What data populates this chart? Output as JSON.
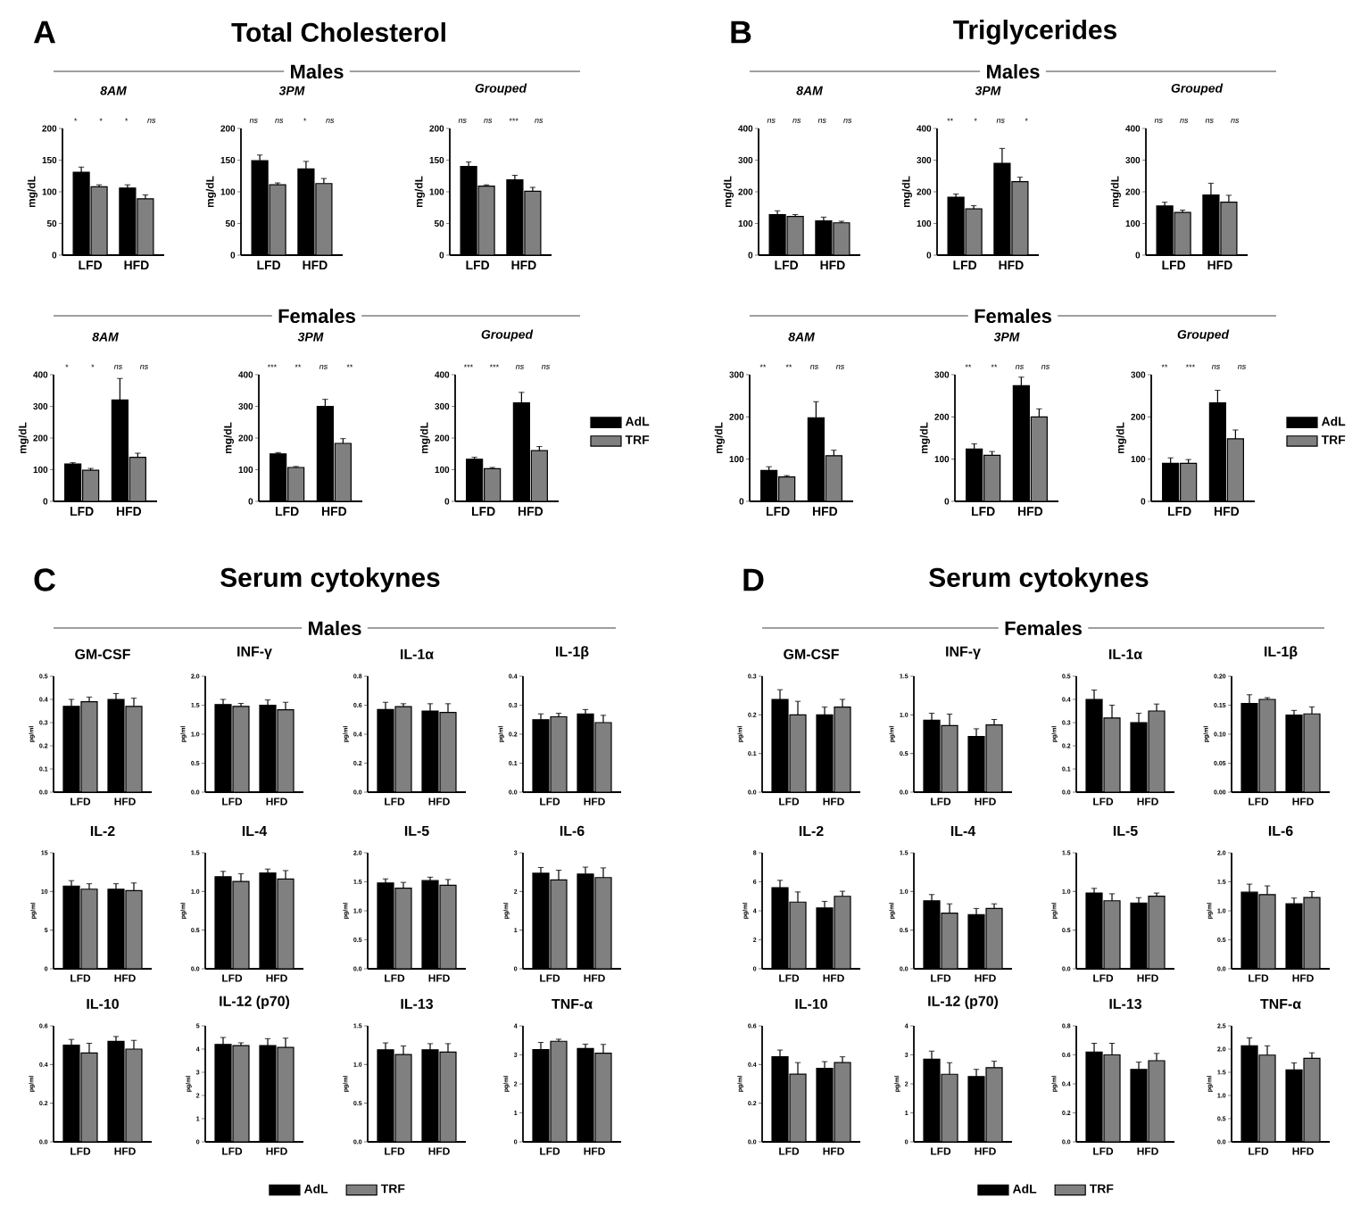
{
  "chart_data": [
    {
      "type": "other",
      "title": "Total Cholesterol",
      "annotations": [
        "A",
        "Males",
        "Females"
      ]
    },
    {
      "type": "bar",
      "title": "8AM",
      "ylabel": "mg/dL",
      "categories": [
        "LFD",
        "HFD"
      ],
      "series": [
        {
          "color": "#000000",
          "values": [
            131,
            106
          ],
          "errors": [
            8,
            5
          ]
        },
        {
          "color": "#808080",
          "values": [
            108,
            89
          ],
          "errors": [
            3,
            6
          ]
        }
      ],
      "ylim": [
        0,
        200
      ],
      "yticks": [
        0,
        50,
        100,
        150,
        200
      ],
      "annotations": [
        "*",
        "*",
        "*",
        "ns"
      ]
    },
    {
      "type": "bar",
      "title": "3PM",
      "ylabel": "mg/dL",
      "categories": [
        "LFD",
        "HFD"
      ],
      "series": [
        {
          "color": "#000000",
          "values": [
            149,
            136
          ],
          "errors": [
            9,
            12
          ]
        },
        {
          "color": "#808080",
          "values": [
            111,
            113
          ],
          "errors": [
            3,
            8
          ]
        }
      ],
      "ylim": [
        0,
        200
      ],
      "yticks": [
        0,
        50,
        100,
        150,
        200
      ],
      "annotations": [
        "ns",
        "ns",
        "*",
        "ns"
      ]
    },
    {
      "type": "bar",
      "title": "Grouped",
      "ylabel": "mg/dL",
      "categories": [
        "LFD",
        "HFD"
      ],
      "series": [
        {
          "color": "#000000",
          "values": [
            140,
            119
          ],
          "errors": [
            7,
            7
          ]
        },
        {
          "color": "#808080",
          "values": [
            109,
            101
          ],
          "errors": [
            2,
            6
          ]
        }
      ],
      "ylim": [
        0,
        200
      ],
      "yticks": [
        0,
        50,
        100,
        150,
        200
      ],
      "annotations": [
        "ns",
        "ns",
        "***",
        "ns"
      ]
    },
    {
      "type": "bar",
      "title": "8AM",
      "ylabel": "mg/dL",
      "categories": [
        "LFD",
        "HFD"
      ],
      "series": [
        {
          "color": "#000000",
          "values": [
            118,
            320
          ],
          "errors": [
            4,
            68
          ]
        },
        {
          "color": "#808080",
          "values": [
            98,
            139
          ],
          "errors": [
            6,
            13
          ]
        }
      ],
      "ylim": [
        0,
        400
      ],
      "yticks": [
        0,
        100,
        200,
        300,
        400
      ],
      "annotations": [
        "*",
        "*",
        "ns",
        "ns"
      ]
    },
    {
      "type": "bar",
      "title": "3PM",
      "ylabel": "mg/dL",
      "categories": [
        "LFD",
        "HFD"
      ],
      "series": [
        {
          "color": "#000000",
          "values": [
            150,
            300
          ],
          "errors": [
            4,
            22
          ]
        },
        {
          "color": "#808080",
          "values": [
            107,
            183
          ],
          "errors": [
            3,
            15
          ]
        }
      ],
      "ylim": [
        0,
        400
      ],
      "yticks": [
        0,
        100,
        200,
        300,
        400
      ],
      "annotations": [
        "***",
        "**",
        "ns",
        "**"
      ]
    },
    {
      "type": "bar",
      "title": "Grouped",
      "ylabel": "mg/dL",
      "categories": [
        "LFD",
        "HFD"
      ],
      "series": [
        {
          "name": "AdL",
          "color": "#000000",
          "values": [
            133,
            311
          ],
          "errors": [
            6,
            33
          ]
        },
        {
          "name": "TRF",
          "color": "#808080",
          "values": [
            103,
            160
          ],
          "errors": [
            4,
            13
          ]
        }
      ],
      "ylim": [
        0,
        400
      ],
      "yticks": [
        0,
        100,
        200,
        300,
        400
      ],
      "annotations": [
        "***",
        "***",
        "ns",
        "ns"
      ],
      "legend": "right"
    },
    {
      "type": "other",
      "title": "Triglycerides",
      "annotations": [
        "B",
        "Males",
        "Females"
      ]
    },
    {
      "type": "bar",
      "title": "8AM",
      "ylabel": "mg/dL",
      "categories": [
        "LFD",
        "HFD"
      ],
      "series": [
        {
          "color": "#000000",
          "values": [
            128,
            108
          ],
          "errors": [
            12,
            12
          ]
        },
        {
          "color": "#808080",
          "values": [
            122,
            102
          ],
          "errors": [
            6,
            5
          ]
        }
      ],
      "ylim": [
        0,
        400
      ],
      "yticks": [
        0,
        100,
        200,
        300,
        400
      ],
      "annotations": [
        "ns",
        "ns",
        "ns",
        "ns"
      ]
    },
    {
      "type": "bar",
      "title": "3PM",
      "ylabel": "mg/dL",
      "categories": [
        "LFD",
        "HFD"
      ],
      "series": [
        {
          "color": "#000000",
          "values": [
            183,
            290
          ],
          "errors": [
            10,
            47
          ]
        },
        {
          "color": "#808080",
          "values": [
            146,
            232
          ],
          "errors": [
            10,
            14
          ]
        }
      ],
      "ylim": [
        0,
        400
      ],
      "yticks": [
        0,
        100,
        200,
        300,
        400
      ],
      "annotations": [
        "**",
        "*",
        "ns",
        "*"
      ]
    },
    {
      "type": "bar",
      "title": "Grouped",
      "ylabel": "mg/dL",
      "categories": [
        "LFD",
        "HFD"
      ],
      "series": [
        {
          "color": "#000000",
          "values": [
            155,
            190
          ],
          "errors": [
            12,
            37
          ]
        },
        {
          "color": "#808080",
          "values": [
            135,
            167
          ],
          "errors": [
            7,
            22
          ]
        }
      ],
      "ylim": [
        0,
        400
      ],
      "yticks": [
        0,
        100,
        200,
        300,
        400
      ],
      "annotations": [
        "ns",
        "ns",
        "ns",
        "ns"
      ]
    },
    {
      "type": "bar",
      "title": "8AM",
      "ylabel": "mg/dL",
      "categories": [
        "LFD",
        "HFD"
      ],
      "series": [
        {
          "color": "#000000",
          "values": [
            73,
            198
          ],
          "errors": [
            9,
            38
          ]
        },
        {
          "color": "#808080",
          "values": [
            58,
            108
          ],
          "errors": [
            3,
            13
          ]
        }
      ],
      "ylim": [
        0,
        300
      ],
      "yticks": [
        0,
        100,
        200,
        300
      ],
      "annotations": [
        "**",
        "**",
        "ns",
        "ns"
      ]
    },
    {
      "type": "bar",
      "title": "3PM",
      "ylabel": "mg/dL",
      "categories": [
        "LFD",
        "HFD"
      ],
      "series": [
        {
          "color": "#000000",
          "values": [
            124,
            274
          ],
          "errors": [
            12,
            20
          ]
        },
        {
          "color": "#808080",
          "values": [
            109,
            200
          ],
          "errors": [
            9,
            19
          ]
        }
      ],
      "ylim": [
        0,
        300
      ],
      "yticks": [
        0,
        100,
        200,
        300
      ],
      "annotations": [
        "**",
        "**",
        "ns",
        "ns"
      ]
    },
    {
      "type": "bar",
      "title": "Grouped",
      "ylabel": "mg/dL",
      "categories": [
        "LFD",
        "HFD"
      ],
      "series": [
        {
          "name": "AdL",
          "color": "#000000",
          "values": [
            90,
            233
          ],
          "errors": [
            13,
            30
          ]
        },
        {
          "name": "TRF",
          "color": "#808080",
          "values": [
            90,
            148
          ],
          "errors": [
            9,
            21
          ]
        }
      ],
      "ylim": [
        0,
        300
      ],
      "yticks": [
        0,
        100,
        200,
        300
      ],
      "annotations": [
        "**",
        "***",
        "ns",
        "ns"
      ],
      "legend": "right"
    },
    {
      "type": "other",
      "title": "Serum cytokynes",
      "annotations": [
        "C",
        "Males"
      ]
    },
    {
      "type": "bar",
      "title": "GM-CSF",
      "ylabel": "pg/ml",
      "categories": [
        "LFD",
        "HFD"
      ],
      "series": [
        {
          "color": "#000000",
          "values": [
            0.37,
            0.4
          ],
          "errors": [
            0.03,
            0.025
          ]
        },
        {
          "color": "#808080",
          "values": [
            0.39,
            0.37
          ],
          "errors": [
            0.02,
            0.035
          ]
        }
      ],
      "ylim": [
        0,
        0.5
      ],
      "yticks": [
        {
          "value": 0,
          "label": "0.0"
        },
        {
          "value": 0.1,
          "label": "0.1"
        },
        {
          "value": 0.2,
          "label": "0.2"
        },
        {
          "value": 0.3,
          "label": "0.3"
        },
        {
          "value": 0.4,
          "label": "0.4"
        },
        {
          "value": 0.5,
          "label": "0.5"
        }
      ]
    },
    {
      "type": "bar",
      "title": "INF-γ",
      "ylabel": "pg/ml",
      "categories": [
        "LFD",
        "HFD"
      ],
      "series": [
        {
          "color": "#000000",
          "values": [
            1.51,
            1.5
          ],
          "errors": [
            0.09,
            0.09
          ]
        },
        {
          "color": "#808080",
          "values": [
            1.48,
            1.42
          ],
          "errors": [
            0.05,
            0.13
          ]
        }
      ],
      "ylim": [
        0,
        2
      ],
      "yticks": [
        {
          "value": 0,
          "label": "0.0"
        },
        {
          "value": 0.5,
          "label": "0.5"
        },
        {
          "value": 1,
          "label": "1.0"
        },
        {
          "value": 1.5,
          "label": "1.5"
        },
        {
          "value": 2,
          "label": "2.0"
        }
      ]
    },
    {
      "type": "bar",
      "title": "IL-1α",
      "ylabel": "pg/ml",
      "categories": [
        "LFD",
        "HFD"
      ],
      "series": [
        {
          "color": "#000000",
          "values": [
            0.57,
            0.56
          ],
          "errors": [
            0.05,
            0.05
          ]
        },
        {
          "color": "#808080",
          "values": [
            0.59,
            0.55
          ],
          "errors": [
            0.02,
            0.06
          ]
        }
      ],
      "ylim": [
        0,
        0.8
      ],
      "yticks": [
        {
          "value": 0,
          "label": "0.0"
        },
        {
          "value": 0.2,
          "label": "0.2"
        },
        {
          "value": 0.4,
          "label": "0.4"
        },
        {
          "value": 0.6,
          "label": "0.6"
        },
        {
          "value": 0.8,
          "label": "0.8"
        }
      ]
    },
    {
      "type": "bar",
      "title": "IL-1β",
      "ylabel": "pg/ml",
      "categories": [
        "LFD",
        "HFD"
      ],
      "series": [
        {
          "color": "#000000",
          "values": [
            0.25,
            0.27
          ],
          "errors": [
            0.02,
            0.015
          ]
        },
        {
          "color": "#808080",
          "values": [
            0.26,
            0.24
          ],
          "errors": [
            0.012,
            0.025
          ]
        }
      ],
      "ylim": [
        0,
        0.4
      ],
      "yticks": [
        {
          "value": 0,
          "label": "0.0"
        },
        {
          "value": 0.1,
          "label": "0.1"
        },
        {
          "value": 0.2,
          "label": "0.2"
        },
        {
          "value": 0.3,
          "label": "0.3"
        },
        {
          "value": 0.4,
          "label": "0.4"
        }
      ]
    },
    {
      "type": "bar",
      "title": "IL-2",
      "ylabel": "pg/ml",
      "categories": [
        "LFD",
        "HFD"
      ],
      "series": [
        {
          "color": "#000000",
          "values": [
            10.7,
            10.3
          ],
          "errors": [
            0.7,
            0.7
          ]
        },
        {
          "color": "#808080",
          "values": [
            10.3,
            10.1
          ],
          "errors": [
            0.7,
            1.0
          ]
        }
      ],
      "ylim": [
        0,
        15
      ],
      "yticks": [
        0,
        5,
        10,
        15
      ]
    },
    {
      "type": "bar",
      "title": "IL-4",
      "ylabel": "pg/ml",
      "categories": [
        "LFD",
        "HFD"
      ],
      "series": [
        {
          "color": "#000000",
          "values": [
            1.19,
            1.24
          ],
          "errors": [
            0.07,
            0.05
          ]
        },
        {
          "color": "#808080",
          "values": [
            1.13,
            1.16
          ],
          "errors": [
            0.1,
            0.11
          ]
        }
      ],
      "ylim": [
        0,
        1.5
      ],
      "yticks": [
        {
          "value": 0,
          "label": "0.0"
        },
        {
          "value": 0.5,
          "label": "0.5"
        },
        {
          "value": 1,
          "label": "1.0"
        },
        {
          "value": 1.5,
          "label": "1.5"
        }
      ]
    },
    {
      "type": "bar",
      "title": "IL-5",
      "ylabel": "pg/ml",
      "categories": [
        "LFD",
        "HFD"
      ],
      "series": [
        {
          "color": "#000000",
          "values": [
            1.48,
            1.52
          ],
          "errors": [
            0.07,
            0.06
          ]
        },
        {
          "color": "#808080",
          "values": [
            1.39,
            1.44
          ],
          "errors": [
            0.1,
            0.1
          ]
        }
      ],
      "ylim": [
        0,
        2
      ],
      "yticks": [
        {
          "value": 0,
          "label": "0.0"
        },
        {
          "value": 0.5,
          "label": "0.5"
        },
        {
          "value": 1,
          "label": "1.0"
        },
        {
          "value": 1.5,
          "label": "1.5"
        },
        {
          "value": 2,
          "label": "2.0"
        }
      ]
    },
    {
      "type": "bar",
      "title": "IL-6",
      "ylabel": "pg/ml",
      "categories": [
        "LFD",
        "HFD"
      ],
      "series": [
        {
          "color": "#000000",
          "values": [
            2.47,
            2.45
          ],
          "errors": [
            0.15,
            0.18
          ]
        },
        {
          "color": "#808080",
          "values": [
            2.3,
            2.36
          ],
          "errors": [
            0.25,
            0.25
          ]
        }
      ],
      "ylim": [
        0,
        3
      ],
      "yticks": [
        0,
        1,
        2,
        3
      ]
    },
    {
      "type": "bar",
      "title": "IL-10",
      "ylabel": "pg/ml",
      "categories": [
        "LFD",
        "HFD"
      ],
      "series": [
        {
          "color": "#000000",
          "values": [
            0.5,
            0.52
          ],
          "errors": [
            0.03,
            0.025
          ]
        },
        {
          "color": "#808080",
          "values": [
            0.46,
            0.48
          ],
          "errors": [
            0.05,
            0.045
          ]
        }
      ],
      "ylim": [
        0,
        0.6
      ],
      "yticks": [
        {
          "value": 0,
          "label": "0.0"
        },
        {
          "value": 0.2,
          "label": "0.2"
        },
        {
          "value": 0.4,
          "label": "0.4"
        },
        {
          "value": 0.6,
          "label": "0.6"
        }
      ]
    },
    {
      "type": "bar",
      "title": "IL-12 (p70)",
      "ylabel": "pg/ml",
      "categories": [
        "LFD",
        "HFD"
      ],
      "series": [
        {
          "name": "AdL",
          "color": "#000000",
          "values": [
            4.2,
            4.15
          ],
          "errors": [
            0.3,
            0.3
          ]
        },
        {
          "name": "TRF",
          "color": "#808080",
          "values": [
            4.15,
            4.07
          ],
          "errors": [
            0.12,
            0.4
          ]
        }
      ],
      "ylim": [
        0,
        5
      ],
      "yticks": [
        0,
        1,
        2,
        3,
        4,
        5
      ],
      "legend": "bottom"
    },
    {
      "type": "bar",
      "title": "IL-13",
      "ylabel": "pg/ml",
      "categories": [
        "LFD",
        "HFD"
      ],
      "series": [
        {
          "color": "#000000",
          "values": [
            1.19,
            1.19
          ],
          "errors": [
            0.09,
            0.08
          ]
        },
        {
          "color": "#808080",
          "values": [
            1.13,
            1.16
          ],
          "errors": [
            0.11,
            0.11
          ]
        }
      ],
      "ylim": [
        0,
        1.5
      ],
      "yticks": [
        {
          "value": 0,
          "label": "0.0"
        },
        {
          "value": 0.5,
          "label": "0.5"
        },
        {
          "value": 1,
          "label": "1.0"
        },
        {
          "value": 1.5,
          "label": "1.5"
        }
      ]
    },
    {
      "type": "bar",
      "title": "TNF-α",
      "ylabel": "pg/ml",
      "categories": [
        "LFD",
        "HFD"
      ],
      "series": [
        {
          "color": "#000000",
          "values": [
            3.18,
            3.22
          ],
          "errors": [
            0.25,
            0.15
          ]
        },
        {
          "color": "#808080",
          "values": [
            3.47,
            3.06
          ],
          "errors": [
            0.07,
            0.3
          ]
        }
      ],
      "ylim": [
        0,
        4
      ],
      "yticks": [
        0,
        1,
        2,
        3,
        4
      ]
    },
    {
      "type": "other",
      "title": "Serum cytokynes",
      "annotations": [
        "D",
        "Females"
      ]
    },
    {
      "type": "bar",
      "title": "GM-CSF",
      "ylabel": "pg/ml",
      "categories": [
        "LFD",
        "HFD"
      ],
      "series": [
        {
          "color": "#000000",
          "values": [
            0.24,
            0.2
          ],
          "errors": [
            0.025,
            0.02
          ]
        },
        {
          "color": "#808080",
          "values": [
            0.2,
            0.22
          ],
          "errors": [
            0.035,
            0.02
          ]
        }
      ],
      "ylim": [
        0,
        0.3
      ],
      "yticks": [
        {
          "value": 0,
          "label": "0.0"
        },
        {
          "value": 0.1,
          "label": "0.1"
        },
        {
          "value": 0.2,
          "label": "0.2"
        },
        {
          "value": 0.3,
          "label": "0.3"
        }
      ]
    },
    {
      "type": "bar",
      "title": "INF-γ",
      "ylabel": "pg/ml",
      "categories": [
        "LFD",
        "HFD"
      ],
      "series": [
        {
          "color": "#000000",
          "values": [
            0.93,
            0.72
          ],
          "errors": [
            0.09,
            0.1
          ]
        },
        {
          "color": "#808080",
          "values": [
            0.86,
            0.87
          ],
          "errors": [
            0.15,
            0.07
          ]
        }
      ],
      "ylim": [
        0,
        1.5
      ],
      "yticks": [
        {
          "value": 0,
          "label": "0.0"
        },
        {
          "value": 0.5,
          "label": "0.5"
        },
        {
          "value": 1,
          "label": "1.0"
        },
        {
          "value": 1.5,
          "label": "1.5"
        }
      ]
    },
    {
      "type": "bar",
      "title": "IL-1α",
      "ylabel": "pg/ml",
      "categories": [
        "LFD",
        "HFD"
      ],
      "series": [
        {
          "color": "#000000",
          "values": [
            0.4,
            0.3
          ],
          "errors": [
            0.04,
            0.04
          ]
        },
        {
          "color": "#808080",
          "values": [
            0.32,
            0.35
          ],
          "errors": [
            0.055,
            0.03
          ]
        }
      ],
      "ylim": [
        0,
        0.5
      ],
      "yticks": [
        {
          "value": 0,
          "label": "0.0"
        },
        {
          "value": 0.1,
          "label": "0.1"
        },
        {
          "value": 0.2,
          "label": "0.2"
        },
        {
          "value": 0.3,
          "label": "0.3"
        },
        {
          "value": 0.4,
          "label": "0.4"
        },
        {
          "value": 0.5,
          "label": "0.5"
        }
      ]
    },
    {
      "type": "bar",
      "title": "IL-1β",
      "ylabel": "pg/ml",
      "categories": [
        "LFD",
        "HFD"
      ],
      "series": [
        {
          "color": "#000000",
          "values": [
            0.153,
            0.133
          ],
          "errors": [
            0.015,
            0.008
          ]
        },
        {
          "color": "#808080",
          "values": [
            0.16,
            0.135
          ],
          "errors": [
            0.003,
            0.012
          ]
        }
      ],
      "ylim": [
        0,
        0.2
      ],
      "yticks": [
        {
          "value": 0,
          "label": "0.00"
        },
        {
          "value": 0.05,
          "label": "0.05"
        },
        {
          "value": 0.1,
          "label": "0.10"
        },
        {
          "value": 0.15,
          "label": "0.15"
        },
        {
          "value": 0.2,
          "label": "0.20"
        }
      ]
    },
    {
      "type": "bar",
      "title": "IL-2",
      "ylabel": "pg/ml",
      "categories": [
        "LFD",
        "HFD"
      ],
      "series": [
        {
          "color": "#000000",
          "values": [
            5.6,
            4.2
          ],
          "errors": [
            0.5,
            0.45
          ]
        },
        {
          "color": "#808080",
          "values": [
            4.6,
            5.0
          ],
          "errors": [
            0.7,
            0.35
          ]
        }
      ],
      "ylim": [
        0,
        8
      ],
      "yticks": [
        0,
        2,
        4,
        6,
        8
      ]
    },
    {
      "type": "bar",
      "title": "IL-4",
      "ylabel": "pg/ml",
      "categories": [
        "LFD",
        "HFD"
      ],
      "series": [
        {
          "color": "#000000",
          "values": [
            0.88,
            0.7
          ],
          "errors": [
            0.08,
            0.08
          ]
        },
        {
          "color": "#808080",
          "values": [
            0.72,
            0.78
          ],
          "errors": [
            0.12,
            0.06
          ]
        }
      ],
      "ylim": [
        0,
        1.5
      ],
      "yticks": [
        {
          "value": 0,
          "label": "0.0"
        },
        {
          "value": 0.5,
          "label": "0.5"
        },
        {
          "value": 1,
          "label": "1.0"
        },
        {
          "value": 1.5,
          "label": "1.5"
        }
      ]
    },
    {
      "type": "bar",
      "title": "IL-5",
      "ylabel": "pg/ml",
      "categories": [
        "LFD",
        "HFD"
      ],
      "series": [
        {
          "color": "#000000",
          "values": [
            0.98,
            0.85
          ],
          "errors": [
            0.06,
            0.07
          ]
        },
        {
          "color": "#808080",
          "values": [
            0.88,
            0.94
          ],
          "errors": [
            0.09,
            0.04
          ]
        }
      ],
      "ylim": [
        0,
        1.5
      ],
      "yticks": [
        {
          "value": 0,
          "label": "0.0"
        },
        {
          "value": 0.5,
          "label": "0.5"
        },
        {
          "value": 1,
          "label": "1.0"
        },
        {
          "value": 1.5,
          "label": "1.5"
        }
      ]
    },
    {
      "type": "bar",
      "title": "IL-6",
      "ylabel": "pg/ml",
      "categories": [
        "LFD",
        "HFD"
      ],
      "series": [
        {
          "color": "#000000",
          "values": [
            1.32,
            1.12
          ],
          "errors": [
            0.14,
            0.1
          ]
        },
        {
          "color": "#808080",
          "values": [
            1.28,
            1.23
          ],
          "errors": [
            0.15,
            0.1
          ]
        }
      ],
      "ylim": [
        0,
        2
      ],
      "yticks": [
        {
          "value": 0,
          "label": "0.0"
        },
        {
          "value": 0.5,
          "label": "0.5"
        },
        {
          "value": 1,
          "label": "1.0"
        },
        {
          "value": 1.5,
          "label": "1.5"
        },
        {
          "value": 2,
          "label": "2.0"
        }
      ]
    },
    {
      "type": "bar",
      "title": "IL-10",
      "ylabel": "pg/ml",
      "categories": [
        "LFD",
        "HFD"
      ],
      "series": [
        {
          "color": "#000000",
          "values": [
            0.44,
            0.38
          ],
          "errors": [
            0.035,
            0.035
          ]
        },
        {
          "color": "#808080",
          "values": [
            0.35,
            0.41
          ],
          "errors": [
            0.06,
            0.03
          ]
        }
      ],
      "ylim": [
        0,
        0.6
      ],
      "yticks": [
        {
          "value": 0,
          "label": "0.0"
        },
        {
          "value": 0.2,
          "label": "0.2"
        },
        {
          "value": 0.4,
          "label": "0.4"
        },
        {
          "value": 0.6,
          "label": "0.6"
        }
      ]
    },
    {
      "type": "bar",
      "title": "IL-12 (p70)",
      "ylabel": "pg/ml",
      "categories": [
        "LFD",
        "HFD"
      ],
      "series": [
        {
          "name": "AdL",
          "color": "#000000",
          "values": [
            2.85,
            2.25
          ],
          "errors": [
            0.28,
            0.25
          ]
        },
        {
          "name": "TRF",
          "color": "#808080",
          "values": [
            2.33,
            2.56
          ],
          "errors": [
            0.4,
            0.22
          ]
        }
      ],
      "ylim": [
        0,
        4
      ],
      "yticks": [
        0,
        1,
        2,
        3,
        4
      ],
      "legend": "bottom"
    },
    {
      "type": "bar",
      "title": "IL-13",
      "ylabel": "pg/ml",
      "categories": [
        "LFD",
        "HFD"
      ],
      "series": [
        {
          "color": "#000000",
          "values": [
            0.62,
            0.5
          ],
          "errors": [
            0.06,
            0.05
          ]
        },
        {
          "color": "#808080",
          "values": [
            0.6,
            0.56
          ],
          "errors": [
            0.08,
            0.05
          ]
        }
      ],
      "ylim": [
        0,
        0.8
      ],
      "yticks": [
        {
          "value": 0,
          "label": "0.0"
        },
        {
          "value": 0.2,
          "label": "0.2"
        },
        {
          "value": 0.4,
          "label": "0.4"
        },
        {
          "value": 0.6,
          "label": "0.6"
        },
        {
          "value": 0.8,
          "label": "0.8"
        }
      ]
    },
    {
      "type": "bar",
      "title": "TNF-α",
      "ylabel": "pg/ml",
      "categories": [
        "LFD",
        "HFD"
      ],
      "series": [
        {
          "color": "#000000",
          "values": [
            2.07,
            1.55
          ],
          "errors": [
            0.17,
            0.15
          ]
        },
        {
          "color": "#808080",
          "values": [
            1.87,
            1.8
          ],
          "errors": [
            0.2,
            0.12
          ]
        }
      ],
      "ylim": [
        0,
        2.5
      ],
      "yticks": [
        {
          "value": 0,
          "label": "0.0"
        },
        {
          "value": 0.5,
          "label": "0.5"
        },
        {
          "value": 1,
          "label": "1.0"
        },
        {
          "value": 1.5,
          "label": "1.5"
        },
        {
          "value": 2,
          "label": "2.0"
        },
        {
          "value": 2.5,
          "label": "2.5"
        }
      ]
    }
  ]
}
